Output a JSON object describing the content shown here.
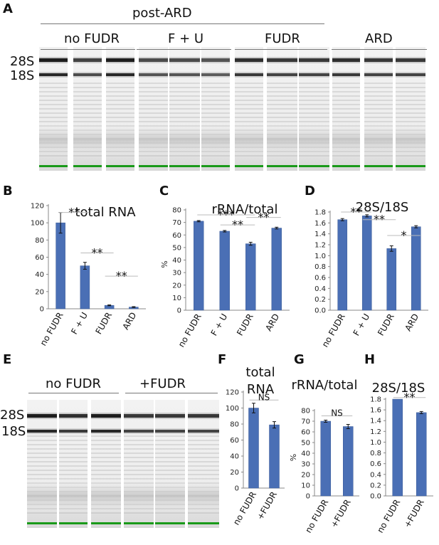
{
  "panel_labels": [
    "A",
    "B",
    "C",
    "D",
    "E",
    "F",
    "G",
    "H"
  ],
  "gel_a": {
    "header": "post-ARD",
    "groups": [
      "no FUDR",
      "F + U",
      "FUDR",
      "ARD"
    ],
    "band_labels": [
      "28S",
      "18S"
    ]
  },
  "gel_e": {
    "groups": [
      "no FUDR",
      "+FUDR"
    ],
    "band_labels": [
      "28S",
      "18S"
    ]
  },
  "chart_data": [
    {
      "id": "B",
      "type": "bar",
      "title": "total RNA",
      "categories": [
        "no FUDR",
        "F + U",
        "FUDR",
        "ARD"
      ],
      "values": [
        100,
        50,
        4,
        2
      ],
      "errors": [
        12,
        4,
        0.5,
        0.5
      ],
      "ylim": [
        0,
        120
      ],
      "yticks": [
        0,
        20,
        40,
        60,
        80,
        100,
        120
      ],
      "ylabel": "",
      "significance": [
        "**",
        "**",
        "**"
      ]
    },
    {
      "id": "C",
      "type": "bar",
      "title": "rRNA/total",
      "categories": [
        "no FUDR",
        "F + U",
        "FUDR",
        "ARD"
      ],
      "values": [
        71,
        63,
        53,
        65.5
      ],
      "errors": [
        0.5,
        0.6,
        1.2,
        0.7
      ],
      "ylim": [
        0,
        80
      ],
      "yticks": [
        0,
        10,
        20,
        30,
        40,
        50,
        60,
        70,
        80
      ],
      "ylabel": "%",
      "significance": [
        "***",
        "**",
        "**"
      ]
    },
    {
      "id": "D",
      "type": "bar",
      "title": "28S/18S",
      "categories": [
        "no FUDR",
        "F + U",
        "FUDR",
        "ARD"
      ],
      "values": [
        1.66,
        1.73,
        1.13,
        1.53
      ],
      "errors": [
        0.02,
        0.02,
        0.05,
        0.02
      ],
      "ylim": [
        0,
        1.8
      ],
      "yticks": [
        "0.0",
        "0.2",
        "0.4",
        "0.6",
        "0.8",
        "1.0",
        "1.2",
        "1.4",
        "1.6",
        "1.8"
      ],
      "ylabel": "",
      "significance": [
        "**",
        "**",
        "*"
      ]
    },
    {
      "id": "F",
      "type": "bar",
      "title_lines": [
        "total",
        "RNA"
      ],
      "categories": [
        "no FUDR",
        "+FUDR"
      ],
      "values": [
        100,
        79
      ],
      "errors": [
        6,
        4
      ],
      "ylim": [
        0,
        120
      ],
      "yticks": [
        0,
        20,
        40,
        60,
        80,
        100,
        120
      ],
      "ylabel": "",
      "significance": [
        "NS"
      ]
    },
    {
      "id": "G",
      "type": "bar",
      "title": "rRNA/total",
      "categories": [
        "no FUDR",
        "+FUDR"
      ],
      "values": [
        70,
        65
      ],
      "errors": [
        1,
        2
      ],
      "ylim": [
        0,
        80
      ],
      "yticks": [
        0,
        10,
        20,
        30,
        40,
        50,
        60,
        70,
        80
      ],
      "ylabel": "%",
      "significance": [
        "NS"
      ]
    },
    {
      "id": "H",
      "type": "bar",
      "title": "28S/18S",
      "categories": [
        "no FUDR",
        "+FUDR"
      ],
      "values": [
        1.8,
        1.55
      ],
      "errors": [
        0.0,
        0.02
      ],
      "ylim": [
        0,
        1.8
      ],
      "yticks": [
        "0.0",
        "0.2",
        "0.4",
        "0.6",
        "0.8",
        "1.0",
        "1.2",
        "1.4",
        "1.6",
        "1.8"
      ],
      "ylabel": "",
      "significance": [
        "**"
      ]
    }
  ],
  "colors": {
    "bar": "#4a6fb5",
    "bar_edge": "#3a5a96",
    "marker": "#1a9a1a"
  }
}
